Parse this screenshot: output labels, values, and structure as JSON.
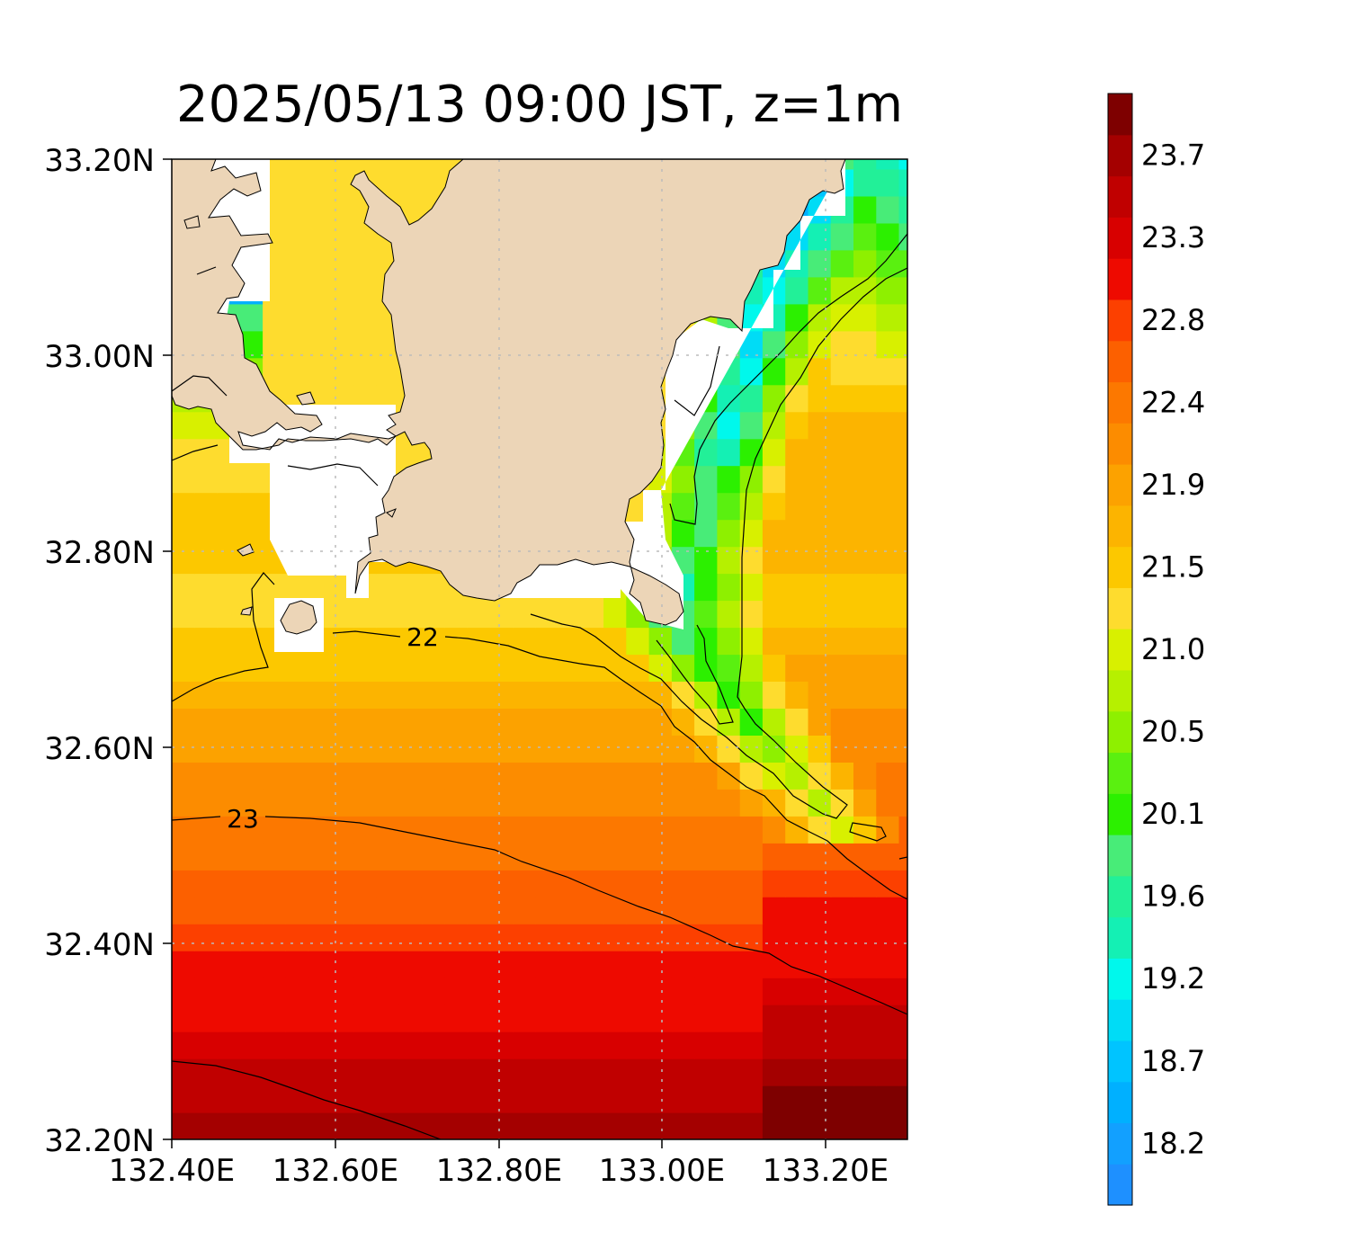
{
  "title": "2025/05/13 09:00 JST, z=1m",
  "map": {
    "lon_range": [
      132.4,
      133.3
    ],
    "lat_range": [
      32.2,
      33.2
    ],
    "x_tick_labels": [
      "132.40E",
      "132.60E",
      "132.80E",
      "133.00E",
      "133.20E"
    ],
    "y_tick_labels": [
      "33.20N",
      "33.00N",
      "32.80N",
      "32.60N",
      "32.40N",
      "32.20N"
    ],
    "land_color": "#ecd5b7",
    "contour_labels": [
      "22",
      "23"
    ]
  },
  "colorbar": {
    "levels": [
      18.0,
      18.2,
      18.4,
      18.7,
      18.9,
      19.2,
      19.4,
      19.6,
      19.8,
      20.1,
      20.3,
      20.5,
      20.7,
      21.0,
      21.2,
      21.5,
      21.7,
      21.9,
      22.1,
      22.4,
      22.6,
      22.8,
      23.0,
      23.3,
      23.5,
      23.7,
      23.9
    ],
    "tick_labels": [
      "18.2",
      "18.7",
      "19.2",
      "19.6",
      "20.1",
      "20.5",
      "21.0",
      "21.5",
      "21.9",
      "22.4",
      "22.8",
      "23.3",
      "23.7"
    ],
    "colors": [
      "#1e90ff",
      "#12a0ff",
      "#00b0ff",
      "#00c4ff",
      "#00dcf6",
      "#00f8ec",
      "#14f0b4",
      "#22f098",
      "#48ec78",
      "#2cf000",
      "#5af010",
      "#8ef000",
      "#b6f000",
      "#d8f000",
      "#fedc2e",
      "#fcc800",
      "#fcb400",
      "#fca200",
      "#fc8c00",
      "#fc7800",
      "#fc6000",
      "#fc4000",
      "#ee0a00",
      "#d80000",
      "#c00000",
      "#a40000",
      "#7e0000"
    ]
  }
}
